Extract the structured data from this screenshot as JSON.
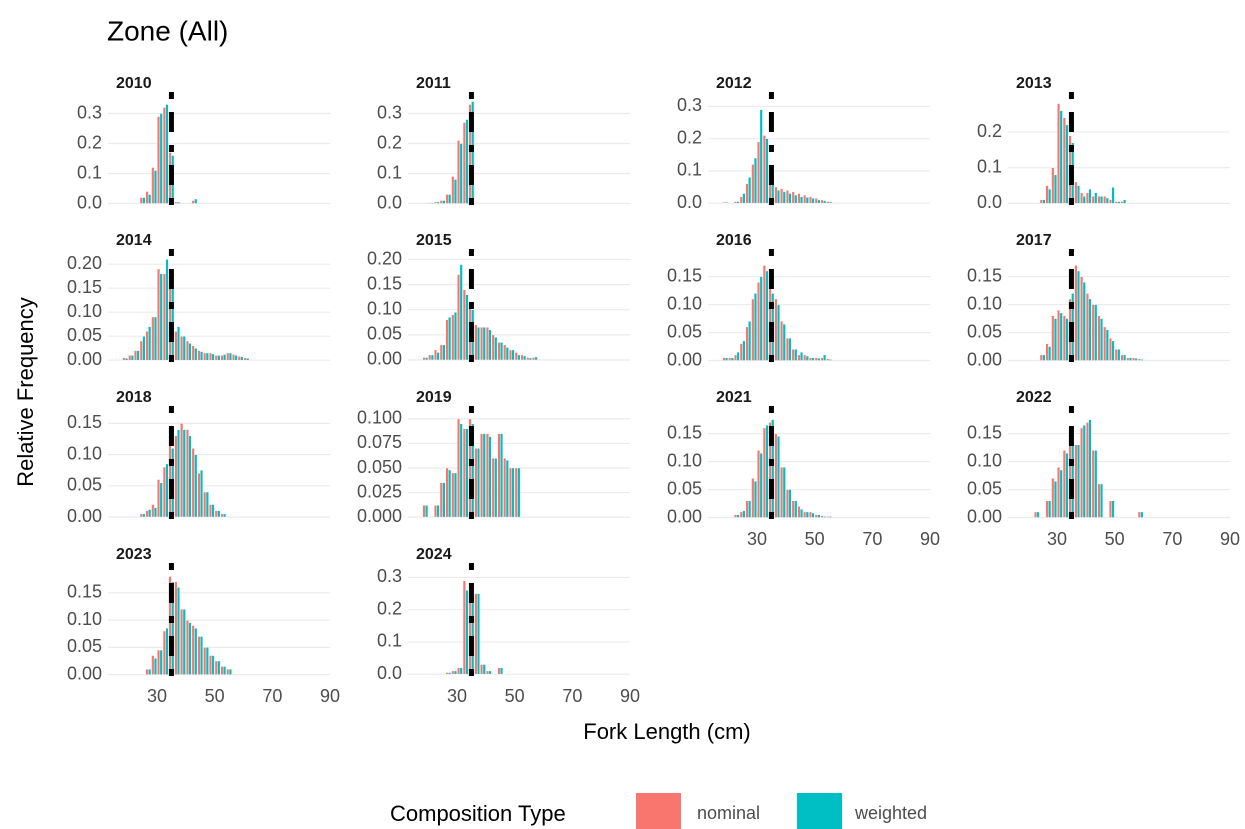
{
  "chart_data": {
    "type": "bar",
    "title": "Zone (All)",
    "x_label": "Fork Length (cm)",
    "y_label": "Relative Frequency",
    "legend_title": "Composition Type",
    "series": [
      {
        "name": "nominal",
        "color": "#F8766D"
      },
      {
        "name": "weighted",
        "color": "#00BFC4"
      }
    ],
    "xlim": [
      13,
      90
    ],
    "xticks": [
      30,
      50,
      70,
      90
    ],
    "vline": 35,
    "grid": true,
    "panels": [
      {
        "title": "2010",
        "x": [
          25,
          27,
          29,
          31,
          33,
          35,
          37,
          43
        ],
        "series": [
          {
            "values": [
              0.02,
              0.04,
              0.12,
              0.29,
              0.32,
              0.17,
              0.005,
              0.01
            ]
          },
          {
            "values": [
              0.02,
              0.03,
              0.11,
              0.3,
              0.33,
              0.16,
              0.005,
              0.015
            ]
          }
        ],
        "ylim": [
          -0.015,
          0.345
        ],
        "yticks": [
          {
            "value": 0,
            "label": "0.0"
          },
          0.1,
          0.2,
          0.3
        ]
      },
      {
        "title": "2011",
        "x": [
          21,
          23,
          25,
          27,
          29,
          31,
          33,
          35
        ],
        "series": [
          {
            "values": [
              0.003,
              0.005,
              0.01,
              0.03,
              0.09,
              0.21,
              0.27,
              0.33
            ]
          },
          {
            "values": [
              0.003,
              0.005,
              0.01,
              0.03,
              0.08,
              0.2,
              0.28,
              0.34
            ]
          }
        ],
        "ylim": [
          -0.015,
          0.345
        ],
        "yticks": [
          {
            "value": 0,
            "label": "0.0"
          },
          0.1,
          0.2,
          0.3
        ]
      },
      {
        "title": "2012",
        "x": [
          19,
          23,
          25,
          27,
          29,
          31,
          33,
          35,
          37,
          39,
          41,
          43,
          45,
          47,
          49,
          51,
          53,
          55
        ],
        "series": [
          {
            "values": [
              0.003,
              0.005,
              0.02,
              0.06,
              0.12,
              0.19,
              0.21,
              0.1,
              0.05,
              0.045,
              0.04,
              0.035,
              0.03,
              0.025,
              0.02,
              0.015,
              0.01,
              0.005
            ]
          },
          {
            "values": [
              0.003,
              0.005,
              0.03,
              0.08,
              0.14,
              0.29,
              0.2,
              0.09,
              0.04,
              0.035,
              0.03,
              0.025,
              0.02,
              0.018,
              0.015,
              0.01,
              0.008,
              0.004
            ]
          }
        ],
        "ylim": [
          -0.015,
          0.32
        ],
        "yticks": [
          {
            "value": 0,
            "label": "0.0"
          },
          0.1,
          0.2,
          0.3
        ]
      },
      {
        "title": "2013",
        "x": [
          25,
          27,
          29,
          31,
          33,
          35,
          37,
          39,
          41,
          43,
          45,
          47,
          49,
          51,
          53
        ],
        "series": [
          {
            "values": [
              0.01,
              0.05,
              0.1,
              0.28,
              0.24,
              0.19,
              0.06,
              0.03,
              0.03,
              0.02,
              0.02,
              0.02,
              0.01,
              0.005,
              0.005
            ]
          },
          {
            "values": [
              0.01,
              0.04,
              0.08,
              0.26,
              0.22,
              0.17,
              0.05,
              0.02,
              0.04,
              0.03,
              0.02,
              0.015,
              0.045,
              0.005,
              0.01
            ]
          }
        ],
        "ylim": [
          -0.013,
          0.29
        ],
        "yticks": [
          {
            "value": 0,
            "label": "0.0"
          },
          0.1,
          0.2
        ]
      },
      {
        "title": "2014",
        "x": [
          19,
          21,
          23,
          25,
          27,
          29,
          31,
          33,
          35,
          37,
          39,
          41,
          43,
          45,
          47,
          49,
          51,
          53,
          55,
          57,
          59,
          61
        ],
        "series": [
          {
            "values": [
              0.005,
              0.01,
              0.02,
              0.04,
              0.06,
              0.09,
              0.19,
              0.18,
              0.16,
              0.06,
              0.05,
              0.04,
              0.03,
              0.02,
              0.015,
              0.015,
              0.01,
              0.01,
              0.015,
              0.012,
              0.008,
              0.005
            ]
          },
          {
            "values": [
              0.004,
              0.01,
              0.02,
              0.05,
              0.07,
              0.09,
              0.18,
              0.21,
              0.15,
              0.07,
              0.05,
              0.035,
              0.025,
              0.018,
              0.015,
              0.013,
              0.01,
              0.012,
              0.015,
              0.01,
              0.007,
              0.004
            ]
          }
        ],
        "ylim": [
          -0.01,
          0.215
        ],
        "yticks": [
          {
            "value": 0,
            "label": "0.00"
          },
          0.05,
          {
            "value": 0.1,
            "label": "0.10"
          },
          0.15,
          {
            "value": 0.2,
            "label": "0.20"
          }
        ]
      },
      {
        "title": "2015",
        "x": [
          19,
          21,
          23,
          25,
          27,
          29,
          31,
          33,
          35,
          37,
          39,
          41,
          43,
          45,
          47,
          49,
          51,
          53,
          55,
          57
        ],
        "series": [
          {
            "values": [
              0.005,
              0.01,
              0.02,
              0.03,
              0.08,
              0.09,
              0.17,
              0.14,
              0.11,
              0.07,
              0.065,
              0.065,
              0.05,
              0.035,
              0.03,
              0.02,
              0.015,
              0.01,
              0.005,
              0.005
            ]
          },
          {
            "values": [
              0.005,
              0.01,
              0.015,
              0.03,
              0.085,
              0.095,
              0.19,
              0.13,
              0.1,
              0.065,
              0.065,
              0.06,
              0.045,
              0.035,
              0.025,
              0.02,
              0.01,
              0.008,
              0.004,
              0.006
            ]
          }
        ],
        "ylim": [
          -0.01,
          0.205
        ],
        "yticks": [
          {
            "value": 0,
            "label": "0.00"
          },
          0.05,
          {
            "value": 0.1,
            "label": "0.10"
          },
          0.15,
          {
            "value": 0.2,
            "label": "0.20"
          }
        ]
      },
      {
        "title": "2016",
        "x": [
          19,
          21,
          23,
          25,
          27,
          29,
          31,
          33,
          35,
          37,
          39,
          41,
          43,
          45,
          47,
          49,
          51,
          53,
          55
        ],
        "series": [
          {
            "values": [
              0.005,
              0.005,
              0.01,
              0.03,
              0.06,
              0.11,
              0.14,
              0.17,
              0.14,
              0.11,
              0.07,
              0.04,
              0.02,
              0.01,
              0.01,
              0.005,
              0.005,
              0.005,
              0.003
            ]
          },
          {
            "values": [
              0.005,
              0.005,
              0.015,
              0.035,
              0.07,
              0.12,
              0.15,
              0.16,
              0.12,
              0.1,
              0.065,
              0.04,
              0.02,
              0.015,
              0.008,
              0.005,
              0.004,
              0.01,
              0.002
            ]
          }
        ],
        "ylim": [
          -0.008,
          0.185
        ],
        "yticks": [
          {
            "value": 0,
            "label": "0.00"
          },
          0.05,
          {
            "value": 0.1,
            "label": "0.10"
          },
          0.15
        ]
      },
      {
        "title": "2017",
        "x": [
          25,
          27,
          29,
          31,
          33,
          35,
          37,
          39,
          41,
          43,
          45,
          47,
          49,
          51,
          53,
          55,
          57,
          59
        ],
        "series": [
          {
            "values": [
              0.01,
              0.03,
              0.08,
              0.09,
              0.08,
              0.11,
              0.17,
              0.15,
              0.12,
              0.1,
              0.08,
              0.06,
              0.04,
              0.02,
              0.01,
              0.005,
              0.005,
              0.003
            ]
          },
          {
            "values": [
              0.01,
              0.025,
              0.075,
              0.085,
              0.075,
              0.12,
              0.16,
              0.14,
              0.11,
              0.1,
              0.075,
              0.055,
              0.035,
              0.02,
              0.01,
              0.005,
              0.004,
              0.002
            ]
          }
        ],
        "ylim": [
          -0.008,
          0.185
        ],
        "yticks": [
          {
            "value": 0,
            "label": "0.00"
          },
          0.05,
          {
            "value": 0.1,
            "label": "0.10"
          },
          0.15
        ]
      },
      {
        "title": "2018",
        "x": [
          25,
          27,
          29,
          31,
          33,
          35,
          37,
          39,
          41,
          43,
          45,
          47,
          49,
          51,
          53
        ],
        "series": [
          {
            "values": [
              0.005,
              0.01,
              0.02,
              0.06,
              0.08,
              0.12,
              0.13,
              0.15,
              0.14,
              0.11,
              0.07,
              0.04,
              0.02,
              0.01,
              0.005
            ]
          },
          {
            "values": [
              0.005,
              0.012,
              0.015,
              0.055,
              0.085,
              0.11,
              0.14,
              0.14,
              0.13,
              0.1,
              0.075,
              0.04,
              0.02,
              0.01,
              0.005
            ]
          }
        ],
        "ylim": [
          -0.008,
          0.165
        ],
        "yticks": [
          {
            "value": 0,
            "label": "0.00"
          },
          0.05,
          {
            "value": 0.1,
            "label": "0.10"
          },
          0.15
        ]
      },
      {
        "title": "2019",
        "x": [
          19,
          23,
          25,
          27,
          29,
          31,
          33,
          35,
          37,
          39,
          41,
          43,
          45,
          47,
          49,
          51
        ],
        "series": [
          {
            "values": [
              0.012,
              0.012,
              0.035,
              0.05,
              0.045,
              0.1,
              0.09,
              0.1,
              0.07,
              0.085,
              0.085,
              0.06,
              0.085,
              0.06,
              0.05,
              0.05
            ]
          },
          {
            "values": [
              0.012,
              0.012,
              0.035,
              0.048,
              0.045,
              0.095,
              0.09,
              0.095,
              0.07,
              0.085,
              0.082,
              0.06,
              0.085,
              0.058,
              0.05,
              0.05
            ]
          }
        ],
        "ylim": [
          -0.005,
          0.105
        ],
        "yticks": [
          {
            "value": 0,
            "label": "0.000"
          },
          0.025,
          {
            "value": 0.05,
            "label": "0.050"
          },
          0.075,
          {
            "value": 0.1,
            "label": "0.100"
          }
        ]
      },
      {
        "title": "2021",
        "x": [
          23,
          25,
          27,
          29,
          31,
          33,
          35,
          37,
          39,
          41,
          43,
          45,
          47,
          49,
          51,
          53,
          55
        ],
        "series": [
          {
            "values": [
              0.005,
              0.01,
              0.03,
              0.07,
              0.12,
              0.16,
              0.17,
              0.15,
              0.09,
              0.05,
              0.03,
              0.02,
              0.01,
              0.01,
              0.005,
              0.003,
              0.002
            ]
          },
          {
            "values": [
              0.005,
              0.012,
              0.03,
              0.065,
              0.115,
              0.165,
              0.175,
              0.145,
              0.09,
              0.05,
              0.03,
              0.015,
              0.01,
              0.008,
              0.005,
              0.002,
              0.002
            ]
          }
        ],
        "ylim": [
          -0.008,
          0.185
        ],
        "yticks": [
          {
            "value": 0,
            "label": "0.00"
          },
          0.05,
          {
            "value": 0.1,
            "label": "0.10"
          },
          0.15
        ]
      },
      {
        "title": "2022",
        "x": [
          23,
          27,
          29,
          31,
          33,
          35,
          37,
          39,
          41,
          43,
          45,
          49,
          59
        ],
        "series": [
          {
            "values": [
              0.01,
              0.03,
              0.07,
              0.09,
              0.12,
              0.15,
              0.13,
              0.16,
              0.17,
              0.12,
              0.06,
              0.03,
              0.01
            ]
          },
          {
            "values": [
              0.01,
              0.03,
              0.065,
              0.085,
              0.115,
              0.13,
              0.13,
              0.165,
              0.175,
              0.12,
              0.06,
              0.03,
              0.01
            ]
          }
        ],
        "ylim": [
          -0.008,
          0.185
        ],
        "yticks": [
          {
            "value": 0,
            "label": "0.00"
          },
          0.05,
          {
            "value": 0.1,
            "label": "0.10"
          },
          0.15
        ]
      },
      {
        "title": "2023",
        "x": [
          27,
          29,
          31,
          33,
          35,
          37,
          39,
          41,
          43,
          45,
          47,
          49,
          51,
          53,
          55
        ],
        "series": [
          {
            "values": [
              0.01,
              0.035,
              0.045,
              0.08,
              0.18,
              0.17,
              0.12,
              0.1,
              0.09,
              0.07,
              0.05,
              0.035,
              0.025,
              0.015,
              0.01
            ]
          },
          {
            "values": [
              0.01,
              0.03,
              0.045,
              0.085,
              0.17,
              0.16,
              0.12,
              0.095,
              0.085,
              0.07,
              0.05,
              0.035,
              0.025,
              0.015,
              0.01
            ]
          }
        ],
        "ylim": [
          -0.008,
          0.19
        ],
        "yticks": [
          {
            "value": 0,
            "label": "0.00"
          },
          0.05,
          {
            "value": 0.1,
            "label": "0.10"
          },
          0.15
        ]
      },
      {
        "title": "2024",
        "x": [
          27,
          29,
          31,
          33,
          35,
          37,
          39,
          41,
          45
        ],
        "series": [
          {
            "values": [
              0.005,
              0.01,
              0.02,
              0.29,
              0.24,
              0.25,
              0.03,
              0.01,
              0.02
            ]
          },
          {
            "values": [
              0.005,
              0.01,
              0.02,
              0.26,
              0.24,
              0.25,
              0.03,
              0.01,
              0.02
            ]
          }
        ],
        "ylim": [
          -0.015,
          0.32
        ],
        "yticks": [
          {
            "value": 0,
            "label": "0.0"
          },
          0.1,
          0.2,
          0.3
        ]
      }
    ]
  }
}
